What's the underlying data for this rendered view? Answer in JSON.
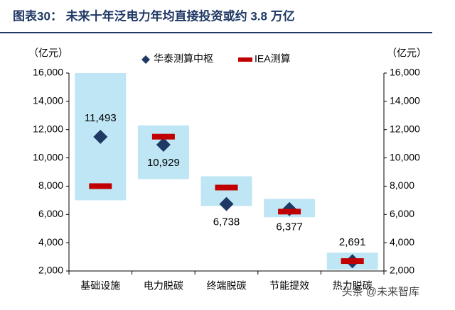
{
  "chart_data": {
    "type": "range-dot",
    "title": "图表30：  未来十年泛电力年均直接投资或约 3.8 万亿",
    "y_unit": "（亿元）",
    "y2_unit": "（亿元）",
    "watermark": "头条 @未来智库",
    "categories": [
      "基础设施",
      "电力脱碳",
      "终端脱碳",
      "节能提效",
      "热力脱碳"
    ],
    "range_color": "#bfe6f5",
    "range_low": [
      7000,
      8500,
      6600,
      5800,
      2100
    ],
    "range_high": [
      16000,
      12300,
      8700,
      7100,
      3300
    ],
    "series": [
      {
        "name": "华泰测算中枢",
        "color": "#1f3864",
        "marker": "diamond",
        "values": [
          11493,
          10929,
          6738,
          6377,
          2691
        ],
        "value_labels": [
          "11,493",
          "10,929",
          "6,738",
          "6,377",
          "2,691"
        ]
      },
      {
        "name": "IEA测算",
        "color": "#c00000",
        "marker": "dash",
        "values": [
          8000,
          11500,
          7900,
          6200,
          2700
        ]
      }
    ],
    "ylim": [
      2000,
      16000
    ],
    "yticks": [
      {
        "value": 2000,
        "label": "2,000"
      },
      {
        "value": 4000,
        "label": "4,000"
      },
      {
        "value": 6000,
        "label": "6,000"
      },
      {
        "value": 8000,
        "label": "8,000"
      },
      {
        "value": 10000,
        "label": "10,000"
      },
      {
        "value": 12000,
        "label": "12,000"
      },
      {
        "value": 14000,
        "label": "14,000"
      },
      {
        "value": 16000,
        "label": "16,000"
      }
    ],
    "y2lim": [
      2000,
      16000
    ],
    "y2ticks": [
      {
        "value": 2000,
        "label": "2,000"
      },
      {
        "value": 4000,
        "label": "4,000"
      },
      {
        "value": 6000,
        "label": "6,000"
      },
      {
        "value": 8000,
        "label": "8,000"
      },
      {
        "value": 10000,
        "label": "10,000"
      },
      {
        "value": 12000,
        "label": "12,000"
      },
      {
        "value": 14000,
        "label": "14,000"
      },
      {
        "value": 16000,
        "label": "16,000"
      }
    ]
  }
}
